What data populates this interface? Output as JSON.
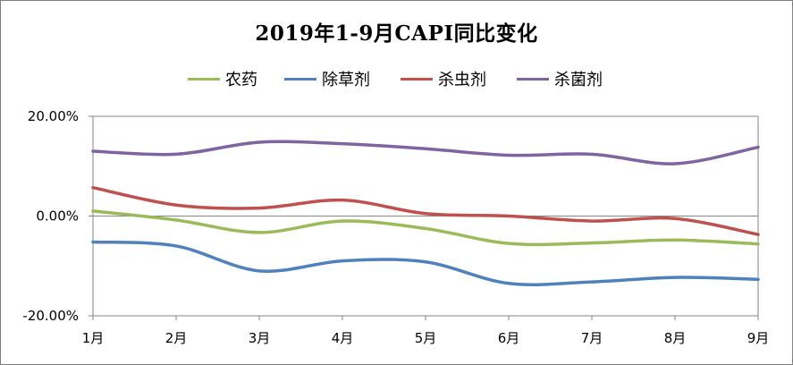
{
  "chart_data": {
    "type": "line",
    "title": "2019年1-9月CAPI同比变化",
    "categories": [
      "1月",
      "2月",
      "3月",
      "4月",
      "5月",
      "6月",
      "7月",
      "8月",
      "9月"
    ],
    "yticks": [
      "20.00%",
      "0.00%",
      "-20.00%"
    ],
    "ytick_values": [
      20,
      0,
      -20
    ],
    "ylim": [
      -20,
      20
    ],
    "grid": "horizontal",
    "legend": "top-center",
    "series": [
      {
        "name": "农药",
        "color": "#9bbb59",
        "values": [
          1.0,
          -0.8,
          -3.3,
          -1.0,
          -2.5,
          -5.5,
          -5.4,
          -4.8,
          -5.6
        ]
      },
      {
        "name": "除草剂",
        "color": "#4f81bd",
        "values": [
          -5.2,
          -6.0,
          -11.0,
          -9.0,
          -9.2,
          -13.5,
          -13.2,
          -12.3,
          -12.7
        ]
      },
      {
        "name": "杀虫剂",
        "color": "#c0504d",
        "values": [
          5.7,
          2.2,
          1.6,
          3.2,
          0.5,
          0.0,
          -1.0,
          -0.5,
          -3.7
        ]
      },
      {
        "name": "杀菌剂",
        "color": "#8064a2",
        "values": [
          13.0,
          12.4,
          14.8,
          14.5,
          13.5,
          12.2,
          12.4,
          10.5,
          13.8
        ]
      }
    ]
  }
}
